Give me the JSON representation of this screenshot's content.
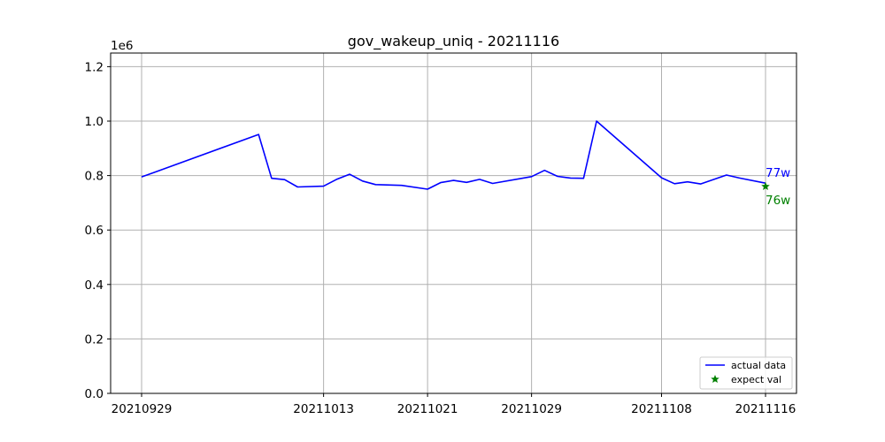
{
  "chart_data": {
    "type": "line",
    "title": "gov_wakeup_uniq - 20211116",
    "y_offset_label": "1e6",
    "xlabel": "",
    "ylabel": "",
    "ylim": [
      0,
      1250000
    ],
    "grid": true,
    "legend_position": "lower-right",
    "colors": {
      "actual": "#0000ff",
      "expect": "#008000",
      "grid": "#b0b0b0"
    },
    "x_ticks": [
      "20210929",
      "20211013",
      "20211021",
      "20211029",
      "20211108",
      "20211116"
    ],
    "y_ticks": [
      {
        "value": 0,
        "label": "0.0"
      },
      {
        "value": 200000,
        "label": "0.2"
      },
      {
        "value": 400000,
        "label": "0.4"
      },
      {
        "value": 600000,
        "label": "0.6"
      },
      {
        "value": 800000,
        "label": "0.8"
      },
      {
        "value": 1000000,
        "label": "1.0"
      },
      {
        "value": 1200000,
        "label": "1.2"
      }
    ],
    "series": [
      {
        "name": "actual data",
        "style": "line",
        "x": [
          "20210929",
          "20210930",
          "20211008",
          "20211009",
          "20211010",
          "20211011",
          "20211013",
          "20211014",
          "20211015",
          "20211016",
          "20211017",
          "20211019",
          "20211021",
          "20211022",
          "20211023",
          "20211024",
          "20211025",
          "20211026",
          "20211029",
          "20211030",
          "20211031",
          "20211101",
          "20211102",
          "20211103",
          "20211108",
          "20211109",
          "20211110",
          "20211111",
          "20211113",
          "20211114",
          "20211116"
        ],
        "values": [
          795000,
          812000,
          951000,
          790000,
          785000,
          758000,
          761000,
          786000,
          805000,
          780000,
          767000,
          764000,
          750000,
          774000,
          782000,
          775000,
          786000,
          771000,
          796000,
          819000,
          797000,
          791000,
          790000,
          1000000,
          792000,
          770000,
          777000,
          769000,
          802000,
          791000,
          772000
        ]
      },
      {
        "name": "expect val",
        "style": "marker-star",
        "x": [
          "20211116"
        ],
        "values": [
          760000
        ]
      }
    ],
    "annotations": [
      {
        "text": "77w",
        "series": "actual data"
      },
      {
        "text": "76w",
        "series": "expect val"
      }
    ]
  }
}
